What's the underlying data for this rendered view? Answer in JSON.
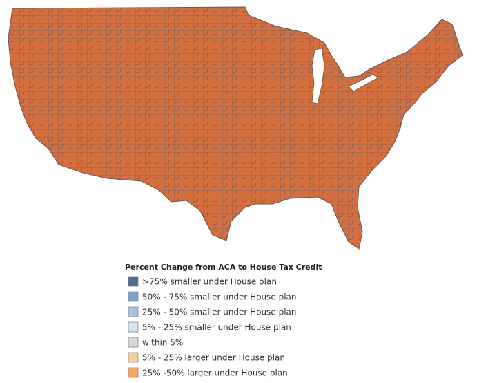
{
  "legend": {
    "title": "Percent Change from ACA to House Tax Credit",
    "items": [
      {
        "label": ">75% smaller under House plan",
        "color": "#4f6e91"
      },
      {
        "label": "50% - 75% smaller under House plan",
        "color": "#7fa3c7"
      },
      {
        "label": "25% - 50% smaller under House plan",
        "color": "#a9c4de"
      },
      {
        "label": "5% - 25% smaller under House plan",
        "color": "#d6e4f3"
      },
      {
        "label": "within 5%",
        "color": "#d9d9d9"
      },
      {
        "label": "5% - 25% larger under House plan",
        "color": "#fbcf9c"
      },
      {
        "label": "25% -50% larger under House plan",
        "color": "#f5aa68"
      }
    ]
  }
}
